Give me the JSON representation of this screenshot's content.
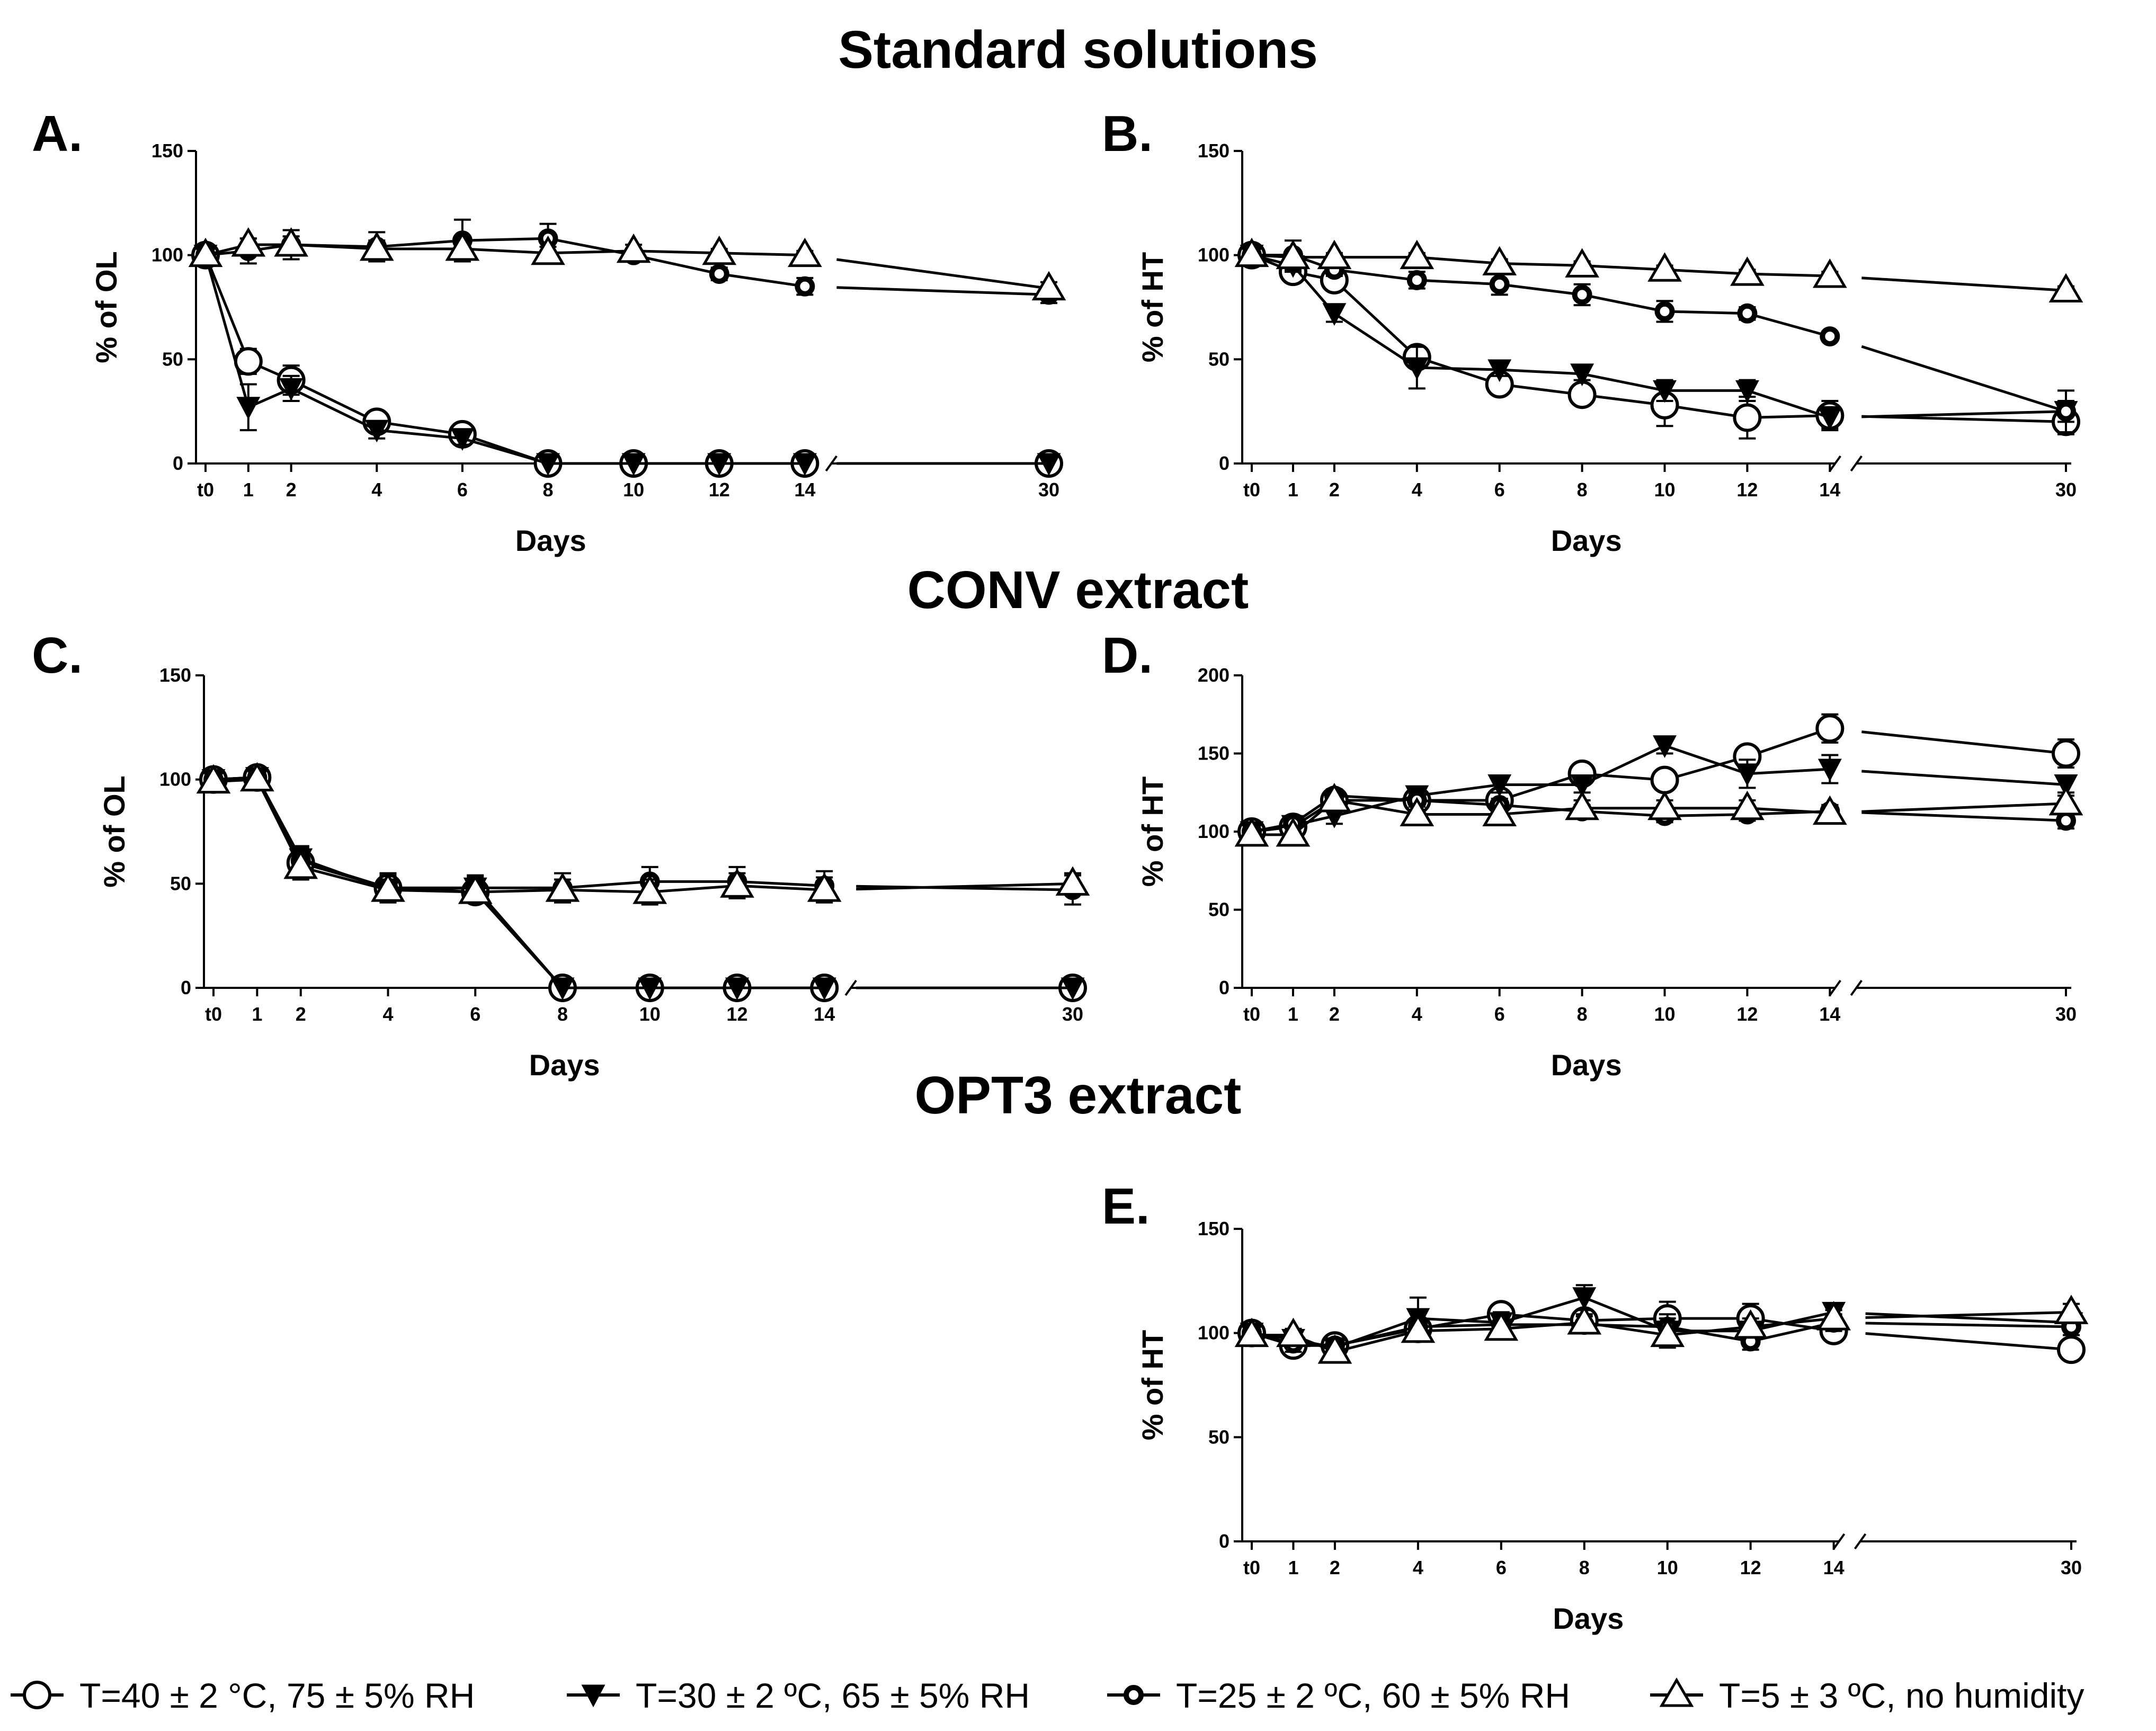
{
  "section_titles": [
    "Standard solutions",
    "CONV extract",
    "OPT3 extract"
  ],
  "legend": [
    {
      "marker": "circle-large",
      "label": "T=40 ± 2 °C, 75 ± 5% RH"
    },
    {
      "marker": "triangle-down-filled",
      "label": "T=30 ± 2 ºC, 65 ± 5% RH"
    },
    {
      "marker": "circle-small-bold",
      "label": "T=25 ± 2 ºC, 60 ± 5% RH"
    },
    {
      "marker": "triangle-up-large",
      "label": "T=5 ± 3 ºC, no humidity"
    }
  ],
  "chart_data": [
    {
      "panel": "A.",
      "type": "line",
      "section": "Standard solutions",
      "xlabel": "Days",
      "ylabel": "% of OL",
      "ylim": [
        0,
        150
      ],
      "yticks": [
        0,
        50,
        100,
        150
      ],
      "xticks": [
        "t0",
        "1",
        "2",
        "4",
        "6",
        "8",
        "10",
        "12",
        "14",
        "30"
      ],
      "x": [
        0,
        1,
        2,
        4,
        6,
        8,
        10,
        12,
        14,
        30
      ],
      "series": [
        {
          "name": "T=40 ± 2 °C, 75 ± 5% RH",
          "values": [
            100,
            49,
            40,
            20,
            14,
            0,
            0,
            0,
            0,
            0
          ],
          "errors": [
            3,
            6,
            7,
            5,
            4,
            0,
            0,
            0,
            0,
            0
          ]
        },
        {
          "name": "T=30 ± 2 ºC, 65 ± 5% RH",
          "values": [
            100,
            27,
            36,
            16,
            12,
            0,
            0,
            0,
            0,
            0
          ],
          "errors": [
            3,
            11,
            6,
            4,
            3,
            0,
            0,
            0,
            0,
            0
          ]
        },
        {
          "name": "T=25 ± 2 ºC, 60 ± 5% RH",
          "values": [
            100,
            102,
            105,
            104,
            107,
            108,
            100,
            91,
            85,
            81
          ],
          "errors": [
            3,
            6,
            7,
            7,
            10,
            7,
            3,
            3,
            4,
            4
          ]
        },
        {
          "name": "T=5 ± 3 ºC, no humidity",
          "values": [
            100,
            105,
            105,
            103,
            103,
            101,
            102,
            101,
            100,
            84
          ],
          "errors": [
            3,
            3,
            4,
            4,
            5,
            3,
            3,
            2,
            2,
            3
          ]
        }
      ]
    },
    {
      "panel": "B.",
      "type": "line",
      "section": "Standard solutions",
      "xlabel": "Days",
      "ylabel": "% of HT",
      "ylim": [
        0,
        150
      ],
      "yticks": [
        0,
        50,
        100,
        150
      ],
      "xticks": [
        "t0",
        "1",
        "2",
        "4",
        "6",
        "8",
        "10",
        "12",
        "14",
        "30"
      ],
      "x": [
        0,
        1,
        2,
        4,
        6,
        8,
        10,
        12,
        14,
        30
      ],
      "series": [
        {
          "name": "T=40 ± 2 °C, 75 ± 5% RH",
          "values": [
            100,
            92,
            88,
            51,
            38,
            33,
            28,
            22,
            23,
            20
          ],
          "errors": [
            3,
            4,
            4,
            4,
            4,
            4,
            10,
            10,
            7,
            6
          ]
        },
        {
          "name": "T=30 ± 2 ºC, 65 ± 5% RH",
          "values": [
            100,
            95,
            72,
            46,
            45,
            43,
            35,
            35,
            22,
            25
          ],
          "errors": [
            3,
            3,
            4,
            10,
            3,
            3,
            5,
            5,
            5,
            10
          ]
        },
        {
          "name": "T=25 ± 2 ºC, 60 ± 5% RH",
          "values": [
            100,
            100,
            93,
            88,
            86,
            81,
            73,
            72,
            61,
            25
          ],
          "errors": [
            3,
            7,
            3,
            4,
            5,
            5,
            5,
            3,
            2,
            5
          ]
        },
        {
          "name": "T=5 ± 3 ºC, no humidity",
          "values": [
            100,
            99,
            99,
            99,
            96,
            95,
            93,
            91,
            90,
            83
          ],
          "errors": [
            3,
            3,
            2,
            2,
            2,
            2,
            2,
            2,
            2,
            2
          ]
        }
      ]
    },
    {
      "panel": "C.",
      "type": "line",
      "section": "CONV extract",
      "xlabel": "Days",
      "ylabel": "% of OL",
      "ylim": [
        0,
        150
      ],
      "yticks": [
        0,
        50,
        100,
        150
      ],
      "xticks": [
        "t0",
        "1",
        "2",
        "4",
        "6",
        "8",
        "10",
        "12",
        "14",
        "30"
      ],
      "x": [
        0,
        1,
        2,
        4,
        6,
        8,
        10,
        12,
        14,
        30
      ],
      "series": [
        {
          "name": "T=40 ± 2 °C, 75 ± 5% RH",
          "values": [
            100,
            101,
            60,
            48,
            46,
            0,
            0,
            0,
            0,
            0
          ],
          "errors": [
            3,
            3,
            8,
            6,
            5,
            0,
            0,
            0,
            0,
            0
          ]
        },
        {
          "name": "T=30 ± 2 ºC, 65 ± 5% RH",
          "values": [
            100,
            101,
            62,
            47,
            48,
            0,
            0,
            0,
            0,
            0
          ],
          "errors": [
            3,
            3,
            6,
            5,
            5,
            0,
            0,
            0,
            0,
            0
          ]
        },
        {
          "name": "T=25 ± 2 ºC, 60 ± 5% RH",
          "values": [
            100,
            101,
            61,
            48,
            48,
            48,
            51,
            51,
            49,
            47
          ],
          "errors": [
            3,
            3,
            6,
            7,
            6,
            7,
            7,
            7,
            7,
            7
          ]
        },
        {
          "name": "T=5 ± 3 ºC, no humidity",
          "values": [
            99,
            100,
            58,
            47,
            46,
            47,
            46,
            49,
            47,
            50
          ],
          "errors": [
            3,
            3,
            5,
            5,
            5,
            5,
            6,
            6,
            6,
            5
          ]
        }
      ]
    },
    {
      "panel": "D.",
      "type": "line",
      "section": "CONV extract",
      "xlabel": "Days",
      "ylabel": "% of HT",
      "ylim": [
        0,
        200
      ],
      "yticks": [
        0,
        50,
        100,
        150,
        200
      ],
      "xticks": [
        "t0",
        "1",
        "2",
        "4",
        "6",
        "8",
        "10",
        "12",
        "14",
        "30"
      ],
      "x": [
        0,
        1,
        2,
        4,
        6,
        8,
        10,
        12,
        14,
        30
      ],
      "series": [
        {
          "name": "T=40 ± 2 °C, 75 ± 5% RH",
          "values": [
            100,
            103,
            120,
            120,
            120,
            137,
            133,
            148,
            166,
            150
          ],
          "errors": [
            3,
            5,
            5,
            5,
            5,
            5,
            6,
            6,
            9,
            9
          ]
        },
        {
          "name": "T=30 ± 2 ºC, 65 ± 5% RH",
          "values": [
            100,
            104,
            110,
            123,
            130,
            130,
            155,
            137,
            140,
            130
          ],
          "errors": [
            3,
            5,
            5,
            5,
            5,
            5,
            5,
            9,
            9,
            5
          ]
        },
        {
          "name": "T=25 ± 2 ºC, 60 ± 5% RH",
          "values": [
            100,
            105,
            123,
            120,
            117,
            113,
            110,
            111,
            113,
            107
          ],
          "errors": [
            3,
            5,
            4,
            4,
            4,
            4,
            4,
            4,
            4,
            5
          ]
        },
        {
          "name": "T=5 ± 3 ºC, no humidity",
          "values": [
            98,
            98,
            120,
            111,
            111,
            115,
            115,
            115,
            112,
            118
          ],
          "errors": [
            3,
            5,
            5,
            5,
            5,
            5,
            5,
            5,
            5,
            5
          ]
        }
      ]
    },
    {
      "panel": "E.",
      "type": "line",
      "section": "OPT3 extract",
      "xlabel": "Days",
      "ylabel": "% of HT",
      "ylim": [
        0,
        150
      ],
      "yticks": [
        0,
        50,
        100,
        150
      ],
      "xticks": [
        "t0",
        "1",
        "2",
        "4",
        "6",
        "8",
        "10",
        "12",
        "14",
        "30"
      ],
      "x": [
        0,
        1,
        2,
        4,
        6,
        8,
        10,
        12,
        14,
        30
      ],
      "series": [
        {
          "name": "T=40 ± 2 °C, 75 ± 5% RH",
          "values": [
            100,
            94,
            94,
            102,
            109,
            106,
            107,
            107,
            101,
            92
          ],
          "errors": [
            3,
            4,
            4,
            4,
            5,
            5,
            8,
            7,
            5,
            4
          ]
        },
        {
          "name": "T=30 ± 2 ºC, 65 ± 5% RH",
          "values": [
            100,
            97,
            93,
            107,
            105,
            117,
            101,
            101,
            110,
            105
          ],
          "errors": [
            3,
            4,
            3,
            10,
            5,
            6,
            8,
            4,
            3,
            4
          ]
        },
        {
          "name": "T=25 ± 2 ºC, 60 ± 5% RH",
          "values": [
            100,
            95,
            94,
            103,
            104,
            104,
            103,
            96,
            105,
            103
          ],
          "errors": [
            3,
            4,
            3,
            3,
            4,
            4,
            4,
            4,
            4,
            4
          ]
        },
        {
          "name": "T=5 ± 3 ºC, no humidity",
          "values": [
            99,
            99,
            91,
            101,
            102,
            105,
            99,
            103,
            107,
            110
          ],
          "errors": [
            3,
            3,
            3,
            3,
            4,
            4,
            4,
            4,
            4,
            4
          ]
        }
      ]
    }
  ]
}
